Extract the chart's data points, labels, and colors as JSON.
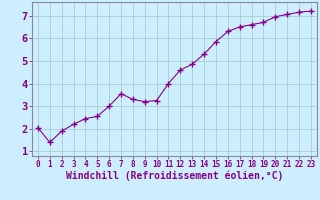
{
  "x": [
    0,
    1,
    2,
    3,
    4,
    5,
    6,
    7,
    8,
    9,
    10,
    11,
    12,
    13,
    14,
    15,
    16,
    17,
    18,
    19,
    20,
    21,
    22,
    23
  ],
  "y": [
    2.05,
    1.4,
    1.9,
    2.2,
    2.45,
    2.55,
    3.0,
    3.55,
    3.3,
    3.2,
    3.25,
    4.0,
    4.6,
    4.85,
    5.3,
    5.85,
    6.3,
    6.5,
    6.6,
    6.7,
    6.95,
    7.05,
    7.15,
    7.2
  ],
  "line_color": "#880088",
  "marker": "+",
  "xlabel": "Windchill (Refroidissement éolien,°C)",
  "xlim": [
    -0.5,
    23.5
  ],
  "ylim": [
    0.8,
    7.6
  ],
  "yticks": [
    1,
    2,
    3,
    4,
    5,
    6,
    7
  ],
  "xticks": [
    0,
    1,
    2,
    3,
    4,
    5,
    6,
    7,
    8,
    9,
    10,
    11,
    12,
    13,
    14,
    15,
    16,
    17,
    18,
    19,
    20,
    21,
    22,
    23
  ],
  "background_color": "#cceeff",
  "grid_color": "#aacccc",
  "tick_label_color": "#880088",
  "xlabel_color": "#880088",
  "tick_fontsize": 5.5,
  "xlabel_fontsize": 7.0,
  "ytick_fontsize": 7.5
}
